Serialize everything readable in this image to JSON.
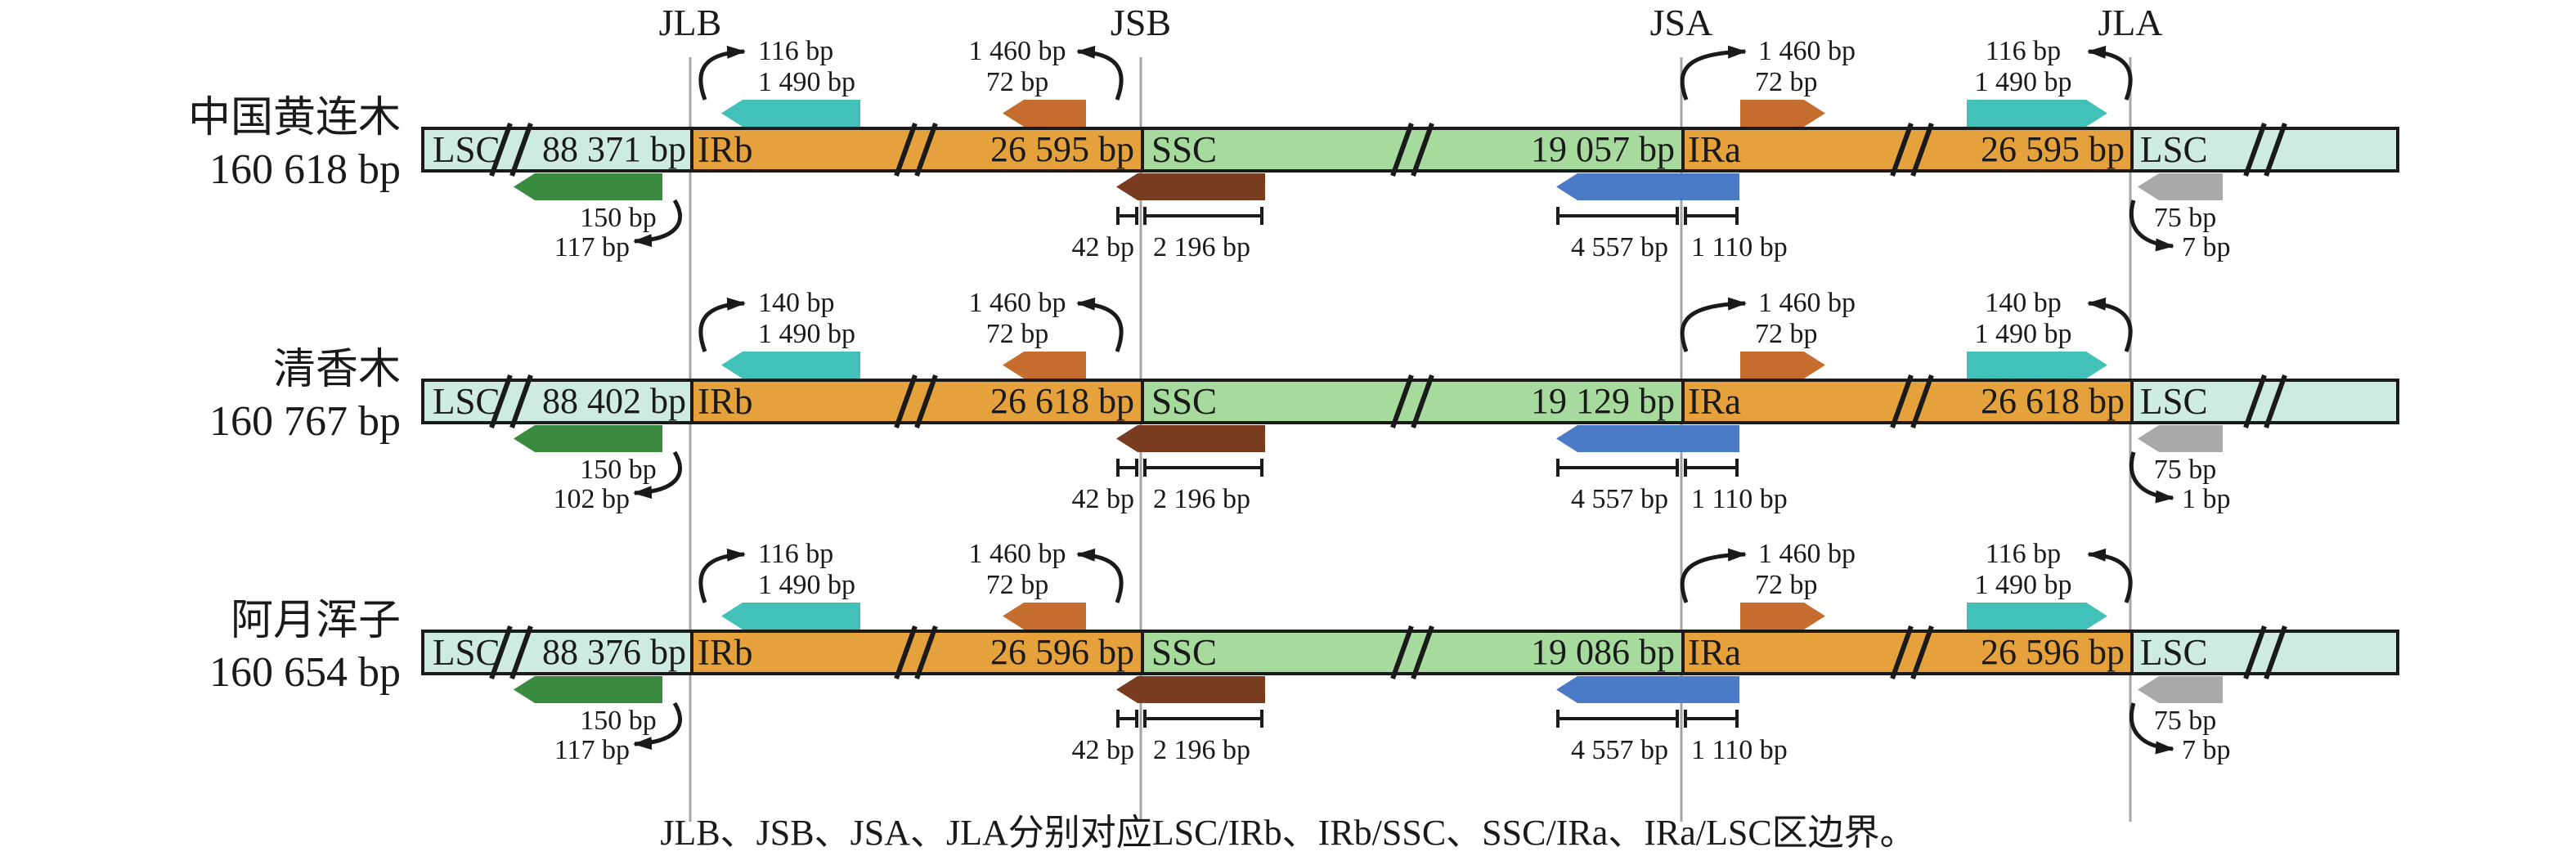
{
  "figure": {
    "junctions": [
      {
        "label": "JLB"
      },
      {
        "label": "JSB"
      },
      {
        "label": "JSA"
      },
      {
        "label": "JLA"
      }
    ],
    "region_labels": {
      "lsc_left": "LSC",
      "irb": "IRb",
      "ssc": "SSC",
      "ira": "IRa",
      "lsc_right": "LSC"
    },
    "rows": [
      {
        "species": "中国黄连木",
        "size": "160 618 bp",
        "segments": {
          "lsc_left": "88 371 bp",
          "irb": "26 595 bp",
          "ssc": "19 057 bp",
          "ira": "26 595 bp"
        },
        "ann": {
          "jlb_above": [
            "116 bp",
            "1 490 bp"
          ],
          "jlb_below": [
            "150 bp",
            "117 bp"
          ],
          "jsb_above": [
            "1 460 bp",
            "72 bp"
          ],
          "jsb_below": [
            "42 bp",
            "2 196 bp"
          ],
          "jsa_above": [
            "1 460 bp",
            "72 bp"
          ],
          "jsa_below": [
            "4 557 bp",
            "1 110 bp"
          ],
          "jla_above": [
            "116 bp",
            "1 490 bp"
          ],
          "jla_below": [
            "75 bp",
            "7 bp"
          ]
        }
      },
      {
        "species": "清香木",
        "size": "160 767 bp",
        "segments": {
          "lsc_left": "88 402 bp",
          "irb": "26 618 bp",
          "ssc": "19 129 bp",
          "ira": "26 618 bp"
        },
        "ann": {
          "jlb_above": [
            "140 bp",
            "1 490 bp"
          ],
          "jlb_below": [
            "150 bp",
            "102 bp"
          ],
          "jsb_above": [
            "1 460 bp",
            "72 bp"
          ],
          "jsb_below": [
            "42 bp",
            "2 196 bp"
          ],
          "jsa_above": [
            "1 460 bp",
            "72 bp"
          ],
          "jsa_below": [
            "4 557 bp",
            "1 110 bp"
          ],
          "jla_above": [
            "140 bp",
            "1 490 bp"
          ],
          "jla_below": [
            "75 bp",
            "1 bp"
          ]
        }
      },
      {
        "species": "阿月浑子",
        "size": "160 654 bp",
        "segments": {
          "lsc_left": "88 376 bp",
          "irb": "26 596 bp",
          "ssc": "19 086 bp",
          "ira": "26 596 bp"
        },
        "ann": {
          "jlb_above": [
            "116 bp",
            "1 490 bp"
          ],
          "jlb_below": [
            "150 bp",
            "117 bp"
          ],
          "jsb_above": [
            "1 460 bp",
            "72 bp"
          ],
          "jsb_below": [
            "42 bp",
            "2 196 bp"
          ],
          "jsa_above": [
            "1 460 bp",
            "72 bp"
          ],
          "jsa_below": [
            "4 557 bp",
            "1 110 bp"
          ],
          "jla_above": [
            "116 bp",
            "1 490 bp"
          ],
          "jla_below": [
            "75 bp",
            "7 bp"
          ]
        }
      }
    ],
    "caption": "JLB、JSB、JSA、JLA分别对应LSC/IRb、IRb/SSC、SSC/IRa、IRa/LSC区边界。",
    "colors": {
      "lsc": "#cdeae3",
      "ssc": "#a6db9d",
      "ir": "#e5a23c",
      "teal": "#41c1b7",
      "green": "#3a8b40",
      "orange": "#c56d2e",
      "brown": "#7a3c20",
      "blue": "#4b7ac7",
      "gray": "#a9a9a9",
      "junction_line": "#a5a5a5",
      "ink": "#1a1a1a"
    }
  }
}
